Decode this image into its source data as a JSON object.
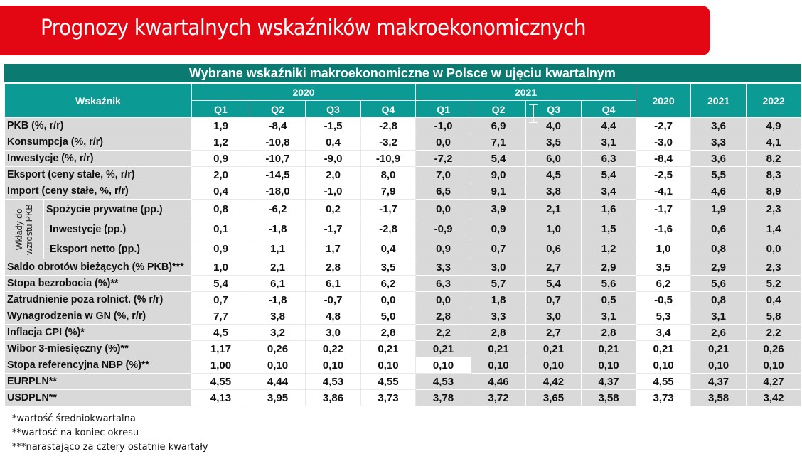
{
  "banner": {
    "title": "Prognozy kwartalnych wskaźników makroekonomicznych",
    "color": "#e30613"
  },
  "table": {
    "title": "Wybrane wskaźniki makroekonomiczne w Polsce w ujęciu kwartalnym",
    "header": {
      "indicator": "Wskaźnik",
      "year_groups": [
        "2020",
        "2021"
      ],
      "quarters": [
        "Q1",
        "Q2",
        "Q3",
        "Q4",
        "Q1",
        "Q2",
        "Q3",
        "Q4"
      ],
      "annual": [
        "2020",
        "2021",
        "2022"
      ]
    },
    "group_label": "Wkłady do wzrostu PKB",
    "rows": [
      {
        "label": "PKB (%, r/r)",
        "values": [
          "1,9",
          "-8,4",
          "-1,5",
          "-2,8",
          "-1,0",
          "6,9",
          "4,0",
          "4,4",
          "-2,7",
          "3,6",
          "4,9"
        ]
      },
      {
        "label": "Konsumpcja (%, r/r)",
        "values": [
          "1,2",
          "-10,8",
          "0,4",
          "-3,2",
          "0,0",
          "7,1",
          "3,5",
          "3,1",
          "-3,0",
          "3,3",
          "4,1"
        ]
      },
      {
        "label": "Inwestycje (%, r/r)",
        "values": [
          "0,9",
          "-10,7",
          "-9,0",
          "-10,9",
          "-7,2",
          "5,4",
          "6,0",
          "6,3",
          "-8,4",
          "3,6",
          "8,2"
        ]
      },
      {
        "label": "Eksport (ceny stałe, %, r/r)",
        "values": [
          "2,0",
          "-14,5",
          "2,0",
          "8,0",
          "7,0",
          "9,0",
          "4,5",
          "5,4",
          "-2,5",
          "5,5",
          "8,3"
        ]
      },
      {
        "label": "Import (ceny stałe, %, r/r)",
        "values": [
          "0,4",
          "-18,0",
          "-1,0",
          "7,9",
          "6,5",
          "9,1",
          "3,8",
          "3,4",
          "-4,1",
          "4,6",
          "8,9"
        ]
      },
      {
        "label": "Spożycie prywatne (pp.)",
        "values": [
          "0,8",
          "-6,2",
          "0,2",
          "-1,7",
          "0,0",
          "3,9",
          "2,1",
          "1,6",
          "-1,7",
          "1,9",
          "2,3"
        ]
      },
      {
        "label": "Inwestycje (pp.)",
        "values": [
          "0,1",
          "-1,8",
          "-1,7",
          "-2,8",
          "-0,9",
          "0,9",
          "1,0",
          "1,5",
          "-1,6",
          "0,6",
          "1,4"
        ]
      },
      {
        "label": "Eksport netto (pp.)",
        "values": [
          "0,9",
          "1,1",
          "1,7",
          "0,4",
          "0,9",
          "0,7",
          "0,6",
          "1,2",
          "1,0",
          "0,8",
          "0,0"
        ]
      },
      {
        "label": "Saldo obrotów bieżących (% PKB)***",
        "values": [
          "1,0",
          "2,1",
          "2,8",
          "3,5",
          "3,3",
          "3,0",
          "2,7",
          "2,9",
          "3,5",
          "2,9",
          "2,3"
        ]
      },
      {
        "label": "Stopa bezrobocia (%)**",
        "values": [
          "5,4",
          "6,1",
          "6,1",
          "6,2",
          "6,3",
          "5,7",
          "5,4",
          "5,6",
          "6,2",
          "5,6",
          "5,2"
        ]
      },
      {
        "label": "Zatrudnienie poza rolnict. (% r/r)",
        "values": [
          "0,7",
          "-1,8",
          "-0,7",
          "0,0",
          "0,0",
          "1,8",
          "0,7",
          "0,5",
          "-0,5",
          "0,8",
          "0,4"
        ]
      },
      {
        "label": "Wynagrodzenia w GN (%, r/r)",
        "values": [
          "7,7",
          "3,8",
          "4,8",
          "5,0",
          "2,8",
          "3,3",
          "3,0",
          "3,1",
          "5,3",
          "3,1",
          "5,8"
        ]
      },
      {
        "label": "Inflacja CPI (%)*",
        "values": [
          "4,5",
          "3,2",
          "3,0",
          "2,8",
          "2,2",
          "2,8",
          "2,7",
          "2,8",
          "3,4",
          "2,6",
          "2,2"
        ]
      },
      {
        "label": "Wibor 3-miesięczny (%)**",
        "values": [
          "1,17",
          "0,26",
          "0,22",
          "0,21",
          "0,21",
          "0,21",
          "0,21",
          "0,21",
          "0,21",
          "0,21",
          "0,26"
        ]
      },
      {
        "label": "Stopa referencyjna NBP (%)**",
        "values": [
          "1,00",
          "0,10",
          "0,10",
          "0,10",
          "0,10",
          "0,10",
          "0,10",
          "0,10",
          "0,10",
          "0,10",
          "0,10"
        ]
      },
      {
        "label": "EURPLN**",
        "values": [
          "4,55",
          "4,44",
          "4,53",
          "4,55",
          "4,53",
          "4,46",
          "4,42",
          "4,37",
          "4,55",
          "4,37",
          "4,27"
        ]
      },
      {
        "label": "USDPLN**",
        "values": [
          "4,13",
          "3,95",
          "3,86",
          "3,73",
          "3,78",
          "3,72",
          "3,65",
          "3,58",
          "3,73",
          "3,58",
          "3,42"
        ]
      }
    ],
    "colors": {
      "title_bg": "#0b7a70",
      "header_bg": "#0c9a94",
      "shaded_cell": "#d9d9d9"
    }
  },
  "footnotes": [
    "*wartość średniokwartalna",
    "**wartość na koniec okresu",
    "***narastająco za cztery ostatnie kwartały"
  ]
}
